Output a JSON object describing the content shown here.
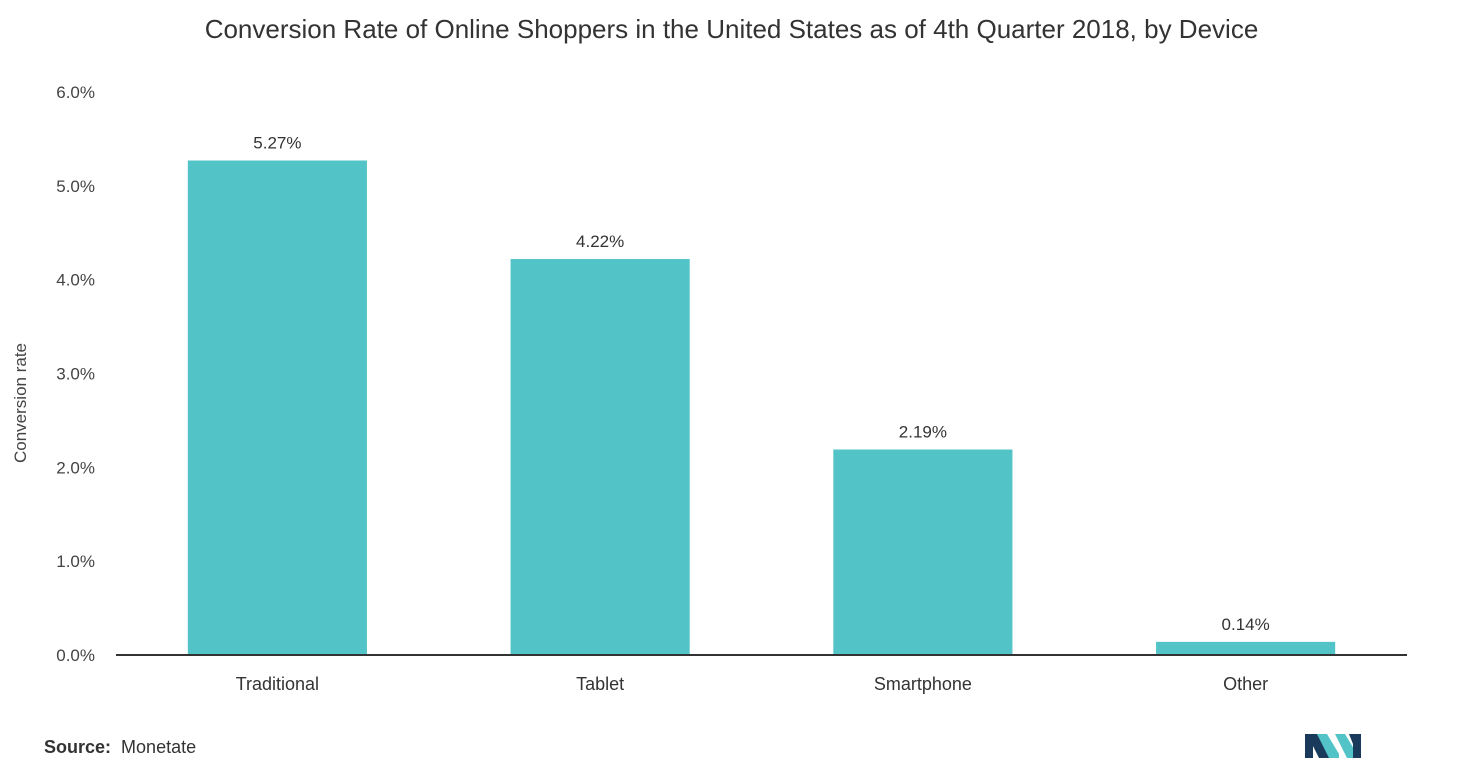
{
  "chart_data": {
    "type": "bar",
    "title": "Conversion Rate of Online Shoppers in the United States as of 4th Quarter 2018, by Device",
    "xlabel": "",
    "ylabel": "Conversion rate",
    "categories": [
      "Traditional",
      "Tablet",
      "Smartphone",
      "Other"
    ],
    "values": [
      5.27,
      4.22,
      2.19,
      0.14
    ],
    "data_labels": [
      "5.27%",
      "4.22%",
      "2.19%",
      "0.14%"
    ],
    "ylim": [
      0,
      6
    ],
    "yticks": [
      0,
      1,
      2,
      3,
      4,
      5,
      6
    ],
    "ytick_labels": [
      "0.0%",
      "1.0%",
      "2.0%",
      "3.0%",
      "4.0%",
      "5.0%",
      "6.0%"
    ],
    "grid": false,
    "bar_color": "#52c4c7"
  },
  "source": {
    "label": "Source:",
    "value": "Monetate"
  },
  "logo": {
    "icon": "brand-logo-icon",
    "colors": [
      "#1a3a5c",
      "#52c4c7"
    ]
  }
}
